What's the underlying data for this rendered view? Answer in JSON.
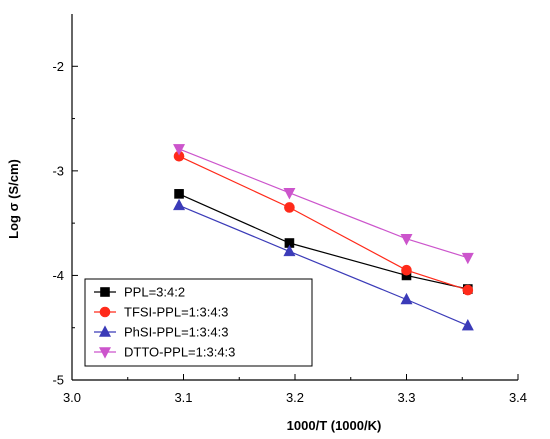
{
  "chart_data": {
    "type": "line",
    "title": "",
    "xlabel": "1000/T (1000/K)",
    "ylabel": "Log σ (S/cm)",
    "xlim": [
      3.0,
      3.4
    ],
    "ylim": [
      -5,
      -1.5
    ],
    "x_ticks": [
      "3.0",
      "3.1",
      "3.2",
      "3.3",
      "3.4"
    ],
    "y_ticks": [
      "-2",
      "-3",
      "-4",
      "-5"
    ],
    "grid": false,
    "legend_position": "bottom-left",
    "series": [
      {
        "name": "PPL=3:4:2",
        "color": "#000000",
        "marker": "square",
        "x": [
          3.096,
          3.195,
          3.3,
          3.355
        ],
        "y": [
          -3.22,
          -3.69,
          -4.0,
          -4.13
        ]
      },
      {
        "name": "TFSI-PPL=1:3:4:3",
        "color": "#ff2a1a",
        "marker": "circle",
        "x": [
          3.096,
          3.195,
          3.3,
          3.355
        ],
        "y": [
          -2.86,
          -3.35,
          -3.95,
          -4.14
        ]
      },
      {
        "name": "PhSI-PPL=1:3:4:3",
        "color": "#3b3bb8",
        "marker": "triangle-up",
        "x": [
          3.096,
          3.195,
          3.3,
          3.355
        ],
        "y": [
          -3.33,
          -3.77,
          -4.23,
          -4.48
        ]
      },
      {
        "name": "DTTO-PPL=1:3:4:3",
        "color": "#cc55cc",
        "marker": "triangle-down",
        "x": [
          3.096,
          3.195,
          3.3,
          3.355
        ],
        "y": [
          -2.79,
          -3.21,
          -3.65,
          -3.83
        ]
      }
    ]
  }
}
